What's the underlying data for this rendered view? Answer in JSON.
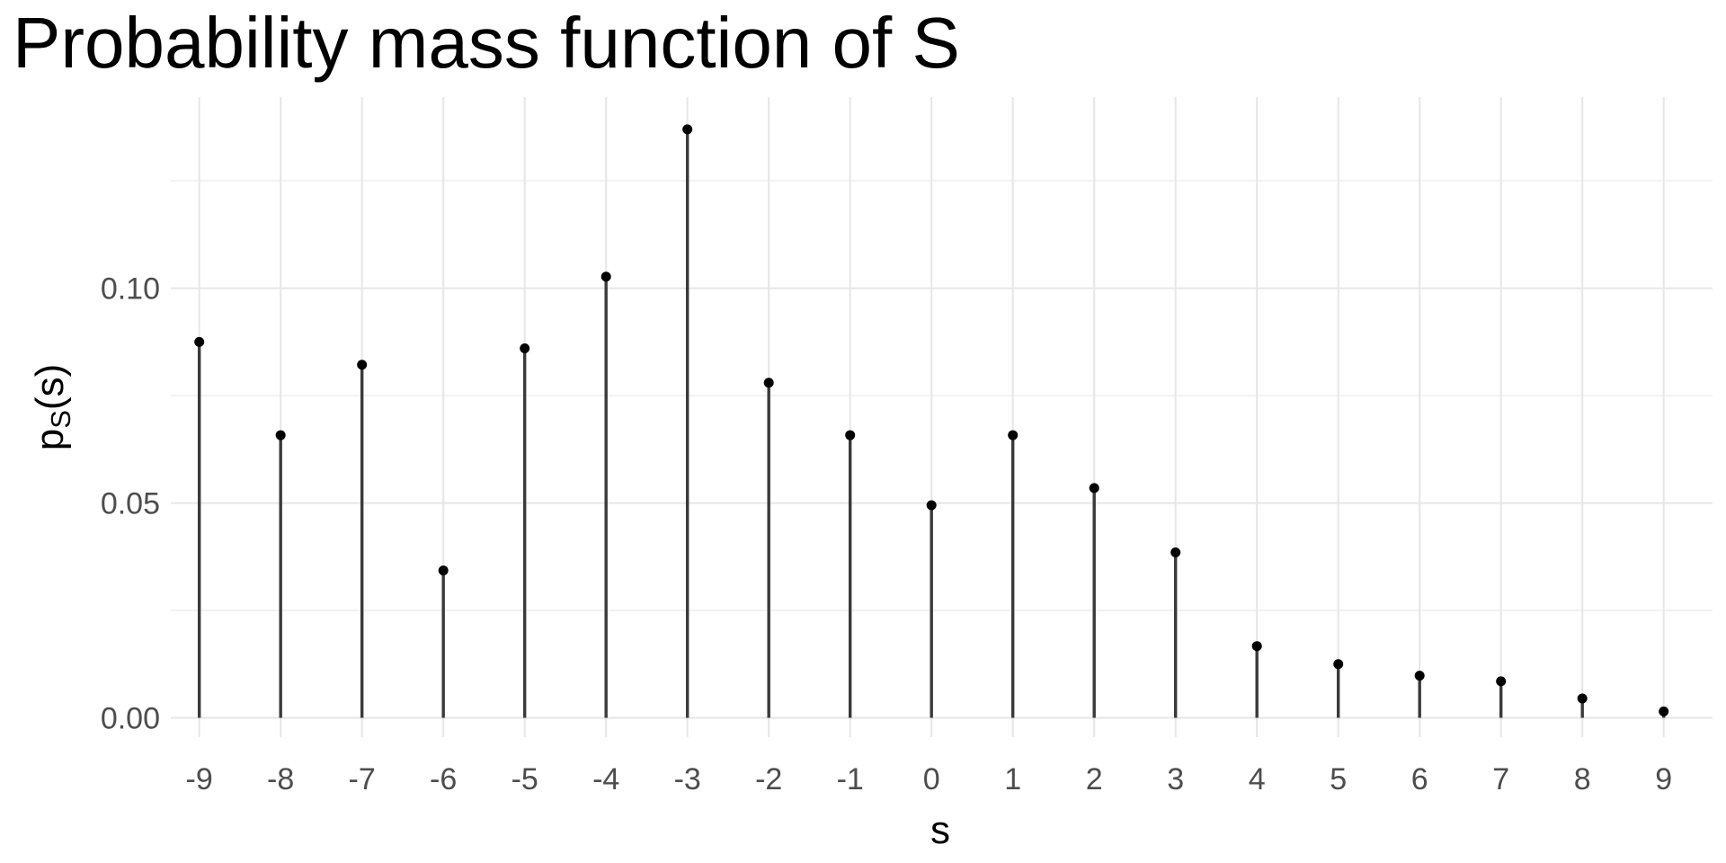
{
  "chart_data": {
    "type": "lollipop",
    "title": "Probability mass function of S",
    "xlabel": "s",
    "ylabel": {
      "main": "p",
      "sub": "S",
      "tail": "(s)"
    },
    "x": [
      -9,
      -8,
      -7,
      -6,
      -5,
      -4,
      -3,
      -2,
      -1,
      0,
      1,
      2,
      3,
      4,
      5,
      6,
      7,
      8,
      9
    ],
    "values": [
      0.0875,
      0.0658,
      0.0822,
      0.0343,
      0.086,
      0.1027,
      0.137,
      0.078,
      0.0658,
      0.0495,
      0.0658,
      0.0535,
      0.0385,
      0.0167,
      0.0125,
      0.0098,
      0.0085,
      0.0045,
      0.0015
    ],
    "x_tick_labels": [
      "-9",
      "-8",
      "-7",
      "-6",
      "-5",
      "-4",
      "-3",
      "-2",
      "-1",
      "0",
      "1",
      "2",
      "3",
      "4",
      "5",
      "6",
      "7",
      "8",
      "9"
    ],
    "y_ticks": [
      0.0,
      0.05,
      0.1
    ],
    "y_tick_labels": [
      "0.00",
      "0.05",
      "0.10"
    ],
    "xlim": [
      -9.35,
      9.6
    ],
    "ylim": [
      -0.0045,
      0.1445
    ],
    "grid": true,
    "legend": "none",
    "colors": {
      "stem": "#3a3a3a",
      "point": "#000000",
      "grid_major": "#e6e6e6",
      "grid_minor": "#f2f2f2",
      "tick_text": "#4d4d4d"
    }
  }
}
